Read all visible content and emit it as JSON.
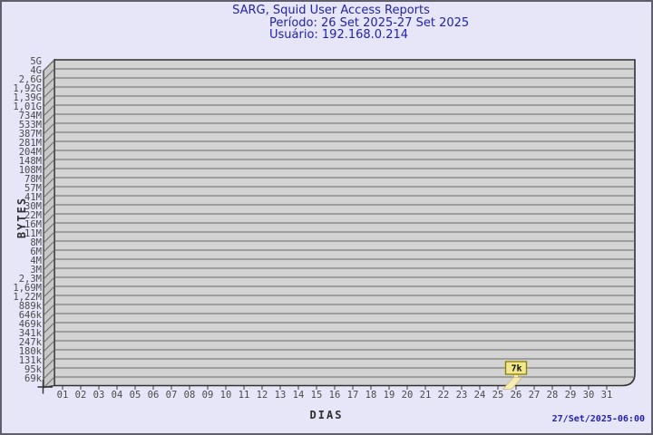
{
  "header": {
    "title": "SARG, Squid User Access Reports",
    "period": "Período: 26 Set 2025-27 Set 2025",
    "user": "Usuário: 192.168.0.214"
  },
  "footer": {
    "timestamp": "27/Set/2025-06:00"
  },
  "colors": {
    "background": "#e6e6f8",
    "title_text": "#2222aa",
    "plot_fill": "#d3d3d3",
    "wall_fill": "#c8c8c8",
    "frame": "#303030",
    "grid": "#696969",
    "tick_text": "#4a4a4a",
    "bar_fill": "#f6ecb2",
    "bar_edge": "#c9b97a",
    "tag_fill": "#f0e68c",
    "tag_border": "#8b7d00"
  },
  "chart_data": {
    "type": "bar",
    "title": "SARG, Squid User Access Reports",
    "subtitle_period": "Período: 26 Set 2025-27 Set 2025",
    "subtitle_user": "Usuário: 192.168.0.214",
    "xlabel": "DIAS",
    "ylabel": "BYTES",
    "y_scale": "log",
    "grid": "horizontal",
    "legend": "none",
    "y_tick_labels": [
      "5G",
      "4G",
      "2,6G",
      "1,92G",
      "1,39G",
      "1,01G",
      "734M",
      "533M",
      "387M",
      "281M",
      "204M",
      "148M",
      "108M",
      "78M",
      "57M",
      "41M",
      "30M",
      "22M",
      "16M",
      "11M",
      "8M",
      "6M",
      "4M",
      "3M",
      "2,3M",
      "1,69M",
      "1,22M",
      "889k",
      "646k",
      "469k",
      "341k",
      "247k",
      "180k",
      "131k",
      "95k",
      "69k"
    ],
    "x_categories": [
      "01",
      "02",
      "03",
      "04",
      "05",
      "06",
      "07",
      "08",
      "09",
      "10",
      "11",
      "12",
      "13",
      "14",
      "15",
      "16",
      "17",
      "18",
      "19",
      "20",
      "21",
      "22",
      "23",
      "24",
      "25",
      "26",
      "27",
      "28",
      "29",
      "30",
      "31"
    ],
    "bars": [
      {
        "day": "26",
        "value_label": "7k",
        "value_bytes": 7000
      }
    ]
  }
}
